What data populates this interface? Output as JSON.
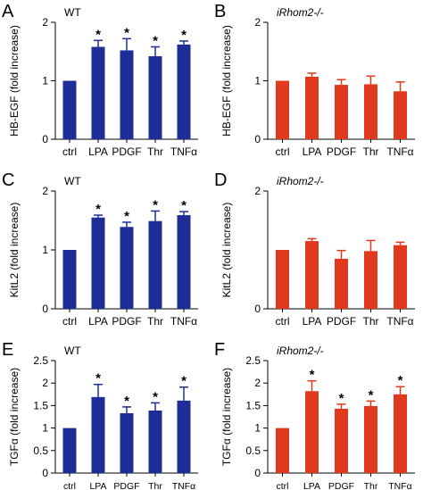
{
  "colors": {
    "wt": "#1f2e96",
    "irhom": "#e03a1e",
    "axis": "#000000"
  },
  "chart_data": [
    {
      "type": "bar",
      "panel": "A",
      "tag": "WT",
      "tag_italic": false,
      "ylabel": "HB-EGF (fold increase)",
      "ylim": [
        0,
        2
      ],
      "yticks": [
        0,
        1,
        2
      ],
      "ytick_labels": [
        "0",
        "1",
        "2"
      ],
      "categories": [
        "ctrl",
        "LPA",
        "PDGF",
        "Thr",
        "TNFα"
      ],
      "values": [
        1.0,
        1.58,
        1.52,
        1.42,
        1.62
      ],
      "errors": [
        0,
        0.11,
        0.2,
        0.16,
        0.06
      ],
      "significance": [
        "",
        "*",
        "*",
        "*",
        "*"
      ],
      "color": "wt",
      "small_labels": false
    },
    {
      "type": "bar",
      "panel": "B",
      "tag": "iRhom2-/-",
      "tag_italic": true,
      "ylabel": "HB-EGF (fold increase)",
      "ylim": [
        0,
        2
      ],
      "yticks": [
        0,
        1,
        2
      ],
      "ytick_labels": [
        "0",
        "1",
        "2"
      ],
      "categories": [
        "ctrl",
        "LPA",
        "PDGF",
        "Thr",
        "TNFα"
      ],
      "values": [
        1.0,
        1.07,
        0.93,
        0.94,
        0.82
      ],
      "errors": [
        0,
        0.06,
        0.09,
        0.14,
        0.16
      ],
      "significance": [
        "",
        "",
        "",
        "",
        ""
      ],
      "color": "irhom",
      "small_labels": false
    },
    {
      "type": "bar",
      "panel": "C",
      "tag": "WT",
      "tag_italic": false,
      "ylabel": "KitL2 (fold increase)",
      "ylim": [
        0,
        2
      ],
      "yticks": [
        0,
        1,
        2
      ],
      "ytick_labels": [
        "0",
        "1",
        "2"
      ],
      "categories": [
        "ctrl",
        "LPA",
        "PDGF",
        "Thr",
        "TNFα"
      ],
      "values": [
        1.0,
        1.55,
        1.39,
        1.49,
        1.59
      ],
      "errors": [
        0,
        0.04,
        0.08,
        0.17,
        0.06
      ],
      "significance": [
        "",
        "*",
        "*",
        "*",
        "*"
      ],
      "color": "wt",
      "small_labels": false
    },
    {
      "type": "bar",
      "panel": "D",
      "tag": "iRhom2-/-",
      "tag_italic": true,
      "ylabel": "KitL2 (fold increase)",
      "ylim": [
        0,
        2
      ],
      "yticks": [
        0,
        2
      ],
      "ytick_labels": [
        "0",
        "2"
      ],
      "categories": [
        "ctrl",
        "LPA",
        "PDGF",
        "Thr",
        "TNFα"
      ],
      "values": [
        1.0,
        1.15,
        0.85,
        0.98,
        1.08
      ],
      "errors": [
        0,
        0.04,
        0.14,
        0.18,
        0.05
      ],
      "significance": [
        "",
        "",
        "",
        "",
        ""
      ],
      "color": "irhom",
      "small_labels": false
    },
    {
      "type": "bar",
      "panel": "E",
      "tag": "WT",
      "tag_italic": false,
      "ylabel": "TGFα (fold increase)",
      "ylim": [
        0,
        2.5
      ],
      "yticks": [
        0,
        0.5,
        1,
        1.5,
        2,
        2.5
      ],
      "ytick_labels": [
        "0",
        "0.5",
        "1",
        "1.5",
        "2",
        "2.5"
      ],
      "categories": [
        "ctrl",
        "LPA",
        "PDGF",
        "Thr",
        "TNFα"
      ],
      "values": [
        1.0,
        1.69,
        1.33,
        1.39,
        1.61
      ],
      "errors": [
        0,
        0.28,
        0.14,
        0.17,
        0.3
      ],
      "significance": [
        "",
        "*",
        "*",
        "*",
        "*"
      ],
      "color": "wt",
      "small_labels": true
    },
    {
      "type": "bar",
      "panel": "F",
      "tag": "iRhom2-/-",
      "tag_italic": true,
      "ylabel": "TGFα (fold increase)",
      "ylim": [
        0,
        2.5
      ],
      "yticks": [
        0,
        0.5,
        1,
        1.5,
        2,
        2.5
      ],
      "ytick_labels": [
        "0",
        "0.5",
        "1",
        "1.5",
        "2",
        "2.5"
      ],
      "categories": [
        "ctrl",
        "LPA",
        "PDGF",
        "Thr",
        "TNFα"
      ],
      "values": [
        1.0,
        1.82,
        1.43,
        1.49,
        1.75
      ],
      "errors": [
        0,
        0.23,
        0.1,
        0.11,
        0.17
      ],
      "significance": [
        "",
        "*",
        "*",
        "*",
        "*"
      ],
      "color": "irhom",
      "small_labels": true
    }
  ]
}
